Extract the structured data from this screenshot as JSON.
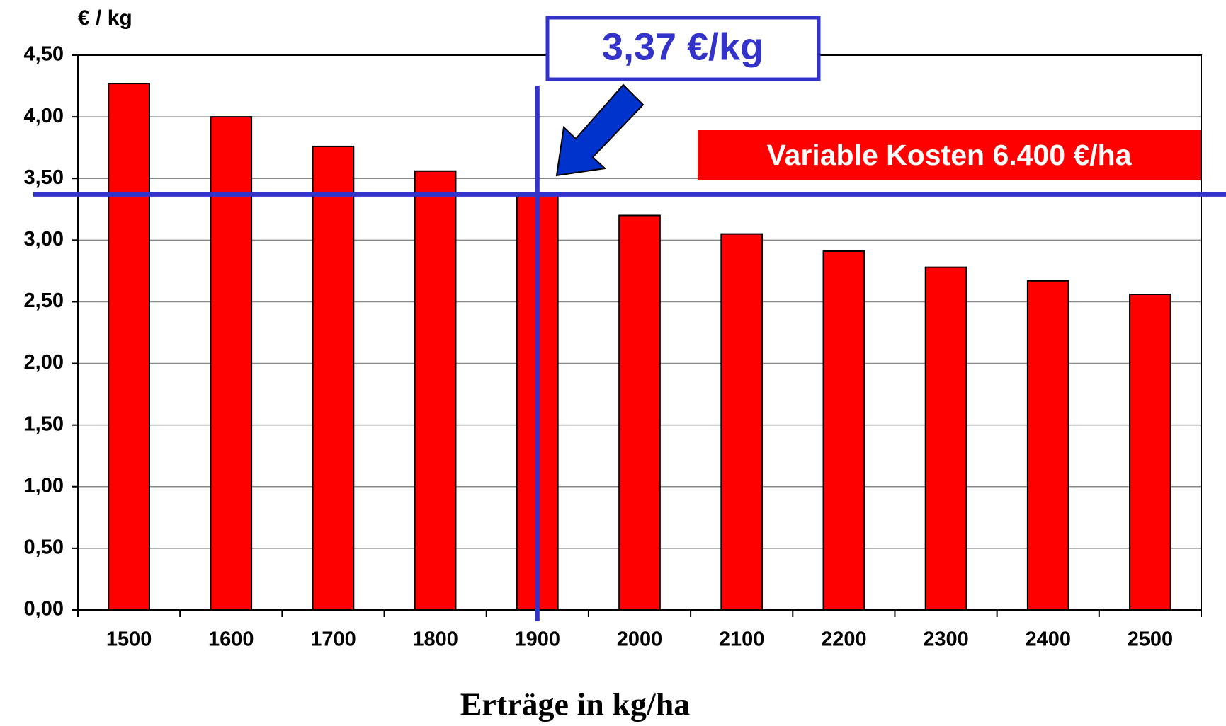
{
  "chart_data": {
    "type": "bar",
    "y_label": "€ / kg",
    "x_label": "Erträge in kg/ha",
    "categories": [
      "1500",
      "1600",
      "1700",
      "1800",
      "1900",
      "2000",
      "2100",
      "2200",
      "2300",
      "2400",
      "2500"
    ],
    "values": [
      4.27,
      4.0,
      3.76,
      3.56,
      3.37,
      3.2,
      3.05,
      2.91,
      2.78,
      2.67,
      2.56
    ],
    "color": "#ff0000",
    "ylim": [
      0,
      4.5
    ],
    "yticks": [
      {
        "value": 0,
        "label": "0,00"
      },
      {
        "value": 0.5,
        "label": "0,50"
      },
      {
        "value": 1,
        "label": "1,00"
      },
      {
        "value": 1.5,
        "label": "1,50"
      },
      {
        "value": 2,
        "label": "2,00"
      },
      {
        "value": 2.5,
        "label": "2,50"
      },
      {
        "value": 3,
        "label": "3,00"
      },
      {
        "value": 3.5,
        "label": "3,50"
      },
      {
        "value": 4,
        "label": "4,00"
      },
      {
        "value": 4.5,
        "label": "4,50"
      }
    ],
    "grid": true,
    "reference_line": {
      "value": 3.37,
      "label": "3,37 €/kg",
      "color": "#3333cc"
    },
    "annotation": "Variable Kosten 6.400 €/ha"
  }
}
